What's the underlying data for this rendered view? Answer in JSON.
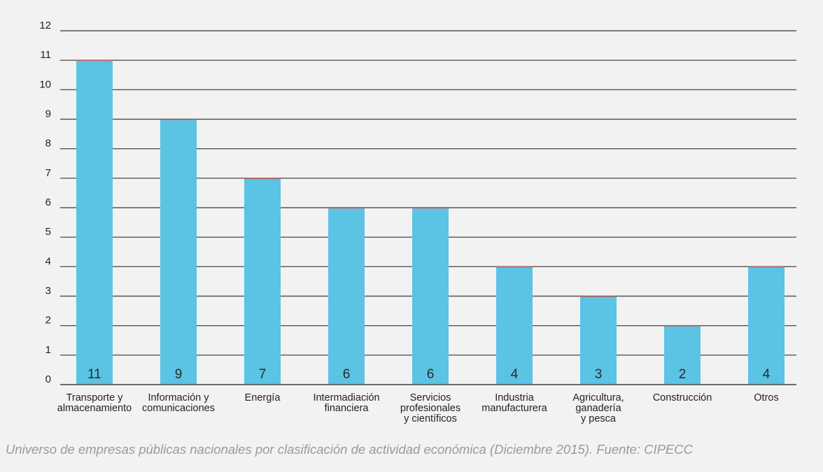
{
  "chart_data": {
    "type": "bar",
    "categories": [
      [
        "Transporte y",
        "almacenamiento"
      ],
      [
        "Información y",
        "comunicaciones"
      ],
      [
        "Energía"
      ],
      [
        "Intermadiación",
        "financiera"
      ],
      [
        "Servicios",
        "profesionales",
        "y científicos"
      ],
      [
        "Industria",
        "manufacturera"
      ],
      [
        "Agricultura,",
        "ganadería",
        "y pesca"
      ],
      [
        "Construcción"
      ],
      [
        "Otros"
      ]
    ],
    "values": [
      11,
      9,
      7,
      6,
      6,
      4,
      3,
      2,
      4
    ],
    "ylim": [
      0,
      12
    ],
    "yticks": [
      "0",
      "1",
      "2",
      "3",
      "4",
      "5",
      "6",
      "7",
      "8",
      "9",
      "10",
      "11",
      "12"
    ],
    "title": "",
    "xlabel": "",
    "ylabel": "",
    "grid": true,
    "bar_color": "#5bc3e4",
    "bar_top_color": "#d9534f"
  },
  "caption": "Universo de empresas públicas nacionales por clasificación de actividad económica (Diciembre 2015). Fuente: CIPECC"
}
